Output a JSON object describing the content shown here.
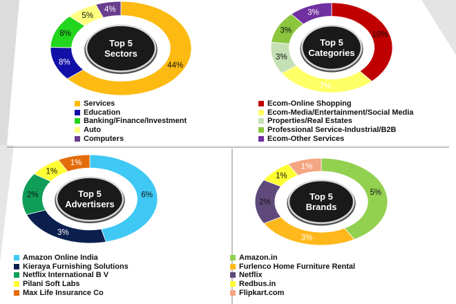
{
  "chart_data": [
    {
      "type": "pie",
      "center_label": [
        "Top 5",
        "Sectors"
      ],
      "categories": [
        "Services",
        "Education",
        "Banking/Finance/Investment",
        "Auto",
        "Computers"
      ],
      "values": [
        44,
        8,
        8,
        5,
        4
      ],
      "labels": [
        "44%",
        "8%",
        "8%",
        "5%",
        "4%"
      ],
      "colors": [
        "#FDBA12",
        "#1010A8",
        "#22D61E",
        "#FFFF80",
        "#6A3E8E"
      ],
      "legend_position": "bottom"
    },
    {
      "type": "pie",
      "center_label": [
        "Top 5",
        "Categories"
      ],
      "categories": [
        "Ecom-Online Shopping",
        "Ecom-Media/Entertainment/Social Media",
        "Properties/Real Estates",
        "Professional Service-Industrial/B2B",
        "Ecom-Other Services"
      ],
      "values": [
        10,
        7,
        3,
        3,
        3
      ],
      "labels": [
        "10%",
        "7%",
        "3%",
        "3%",
        "3%"
      ],
      "colors": [
        "#C00000",
        "#FFFF66",
        "#C5E0B4",
        "#8CC63F",
        "#7030A0"
      ],
      "legend_position": "bottom"
    },
    {
      "type": "pie",
      "center_label": [
        "Top 5",
        "Advertisers"
      ],
      "categories": [
        "Amazon Online India",
        "Kieraya Furnishing Solutions",
        "Netflix International B V",
        "Pilani Soft Labs",
        "Max Life Insurance Co"
      ],
      "values": [
        6,
        3,
        2,
        1,
        1
      ],
      "labels": [
        "6%",
        "3%",
        "2%",
        "1%",
        "1%"
      ],
      "colors": [
        "#3FC8F4",
        "#0B1F4F",
        "#0F9D58",
        "#FFFF33",
        "#E36C09"
      ],
      "legend_position": "bottom"
    },
    {
      "type": "pie",
      "center_label": [
        "Top 5",
        "Brands"
      ],
      "categories": [
        "Amazon.in",
        "Furlenco Home Furniture Rental",
        "Netflix",
        "Redbus.in",
        "Flipkart.com"
      ],
      "values": [
        5,
        3,
        2,
        1,
        1
      ],
      "labels": [
        "5%",
        "3%",
        "2%",
        "1%",
        "1%"
      ],
      "colors": [
        "#92D050",
        "#FFB81C",
        "#604A7B",
        "#FFFF33",
        "#F4A582"
      ],
      "legend_position": "bottom"
    }
  ]
}
